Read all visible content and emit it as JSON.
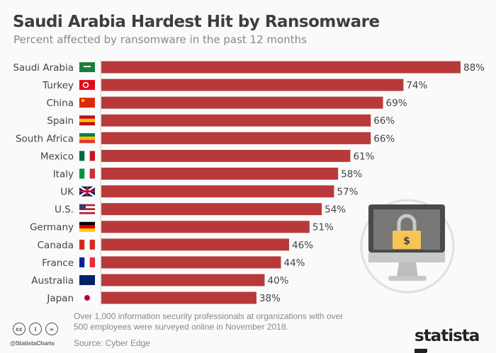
{
  "title": "Saudi Arabia Hardest Hit by Ransomware",
  "subtitle": "Percent affected by ransomware in the past 12 months",
  "chart_data": {
    "type": "bar",
    "orientation": "horizontal",
    "title": "Saudi Arabia Hardest Hit by Ransomware",
    "subtitle": "Percent affected by ransomware in the past 12 months",
    "categories": [
      "Saudi Arabia",
      "Turkey",
      "China",
      "Spain",
      "South Africa",
      "Mexico",
      "Italy",
      "UK",
      "U.S.",
      "Germany",
      "Canada",
      "France",
      "Australia",
      "Japan"
    ],
    "values": [
      88,
      74,
      69,
      66,
      66,
      61,
      58,
      57,
      54,
      51,
      46,
      44,
      40,
      38
    ],
    "value_suffix": "%",
    "bar_color": "#b9393b",
    "xlim": [
      0,
      100
    ],
    "grid": false
  },
  "footer": {
    "note": "Over 1,000 information security professionals at organizations with over 500 employees were surveyed online in November 2018.",
    "source": "Source: Cyber Edge",
    "handle": "@StatistaCharts",
    "logo": "statista",
    "license_icons": [
      "cc-icon",
      "by-icon",
      "nd-icon"
    ]
  },
  "illustration": {
    "icon": "monitor-padlock-dollar-icon",
    "symbol": "$"
  }
}
